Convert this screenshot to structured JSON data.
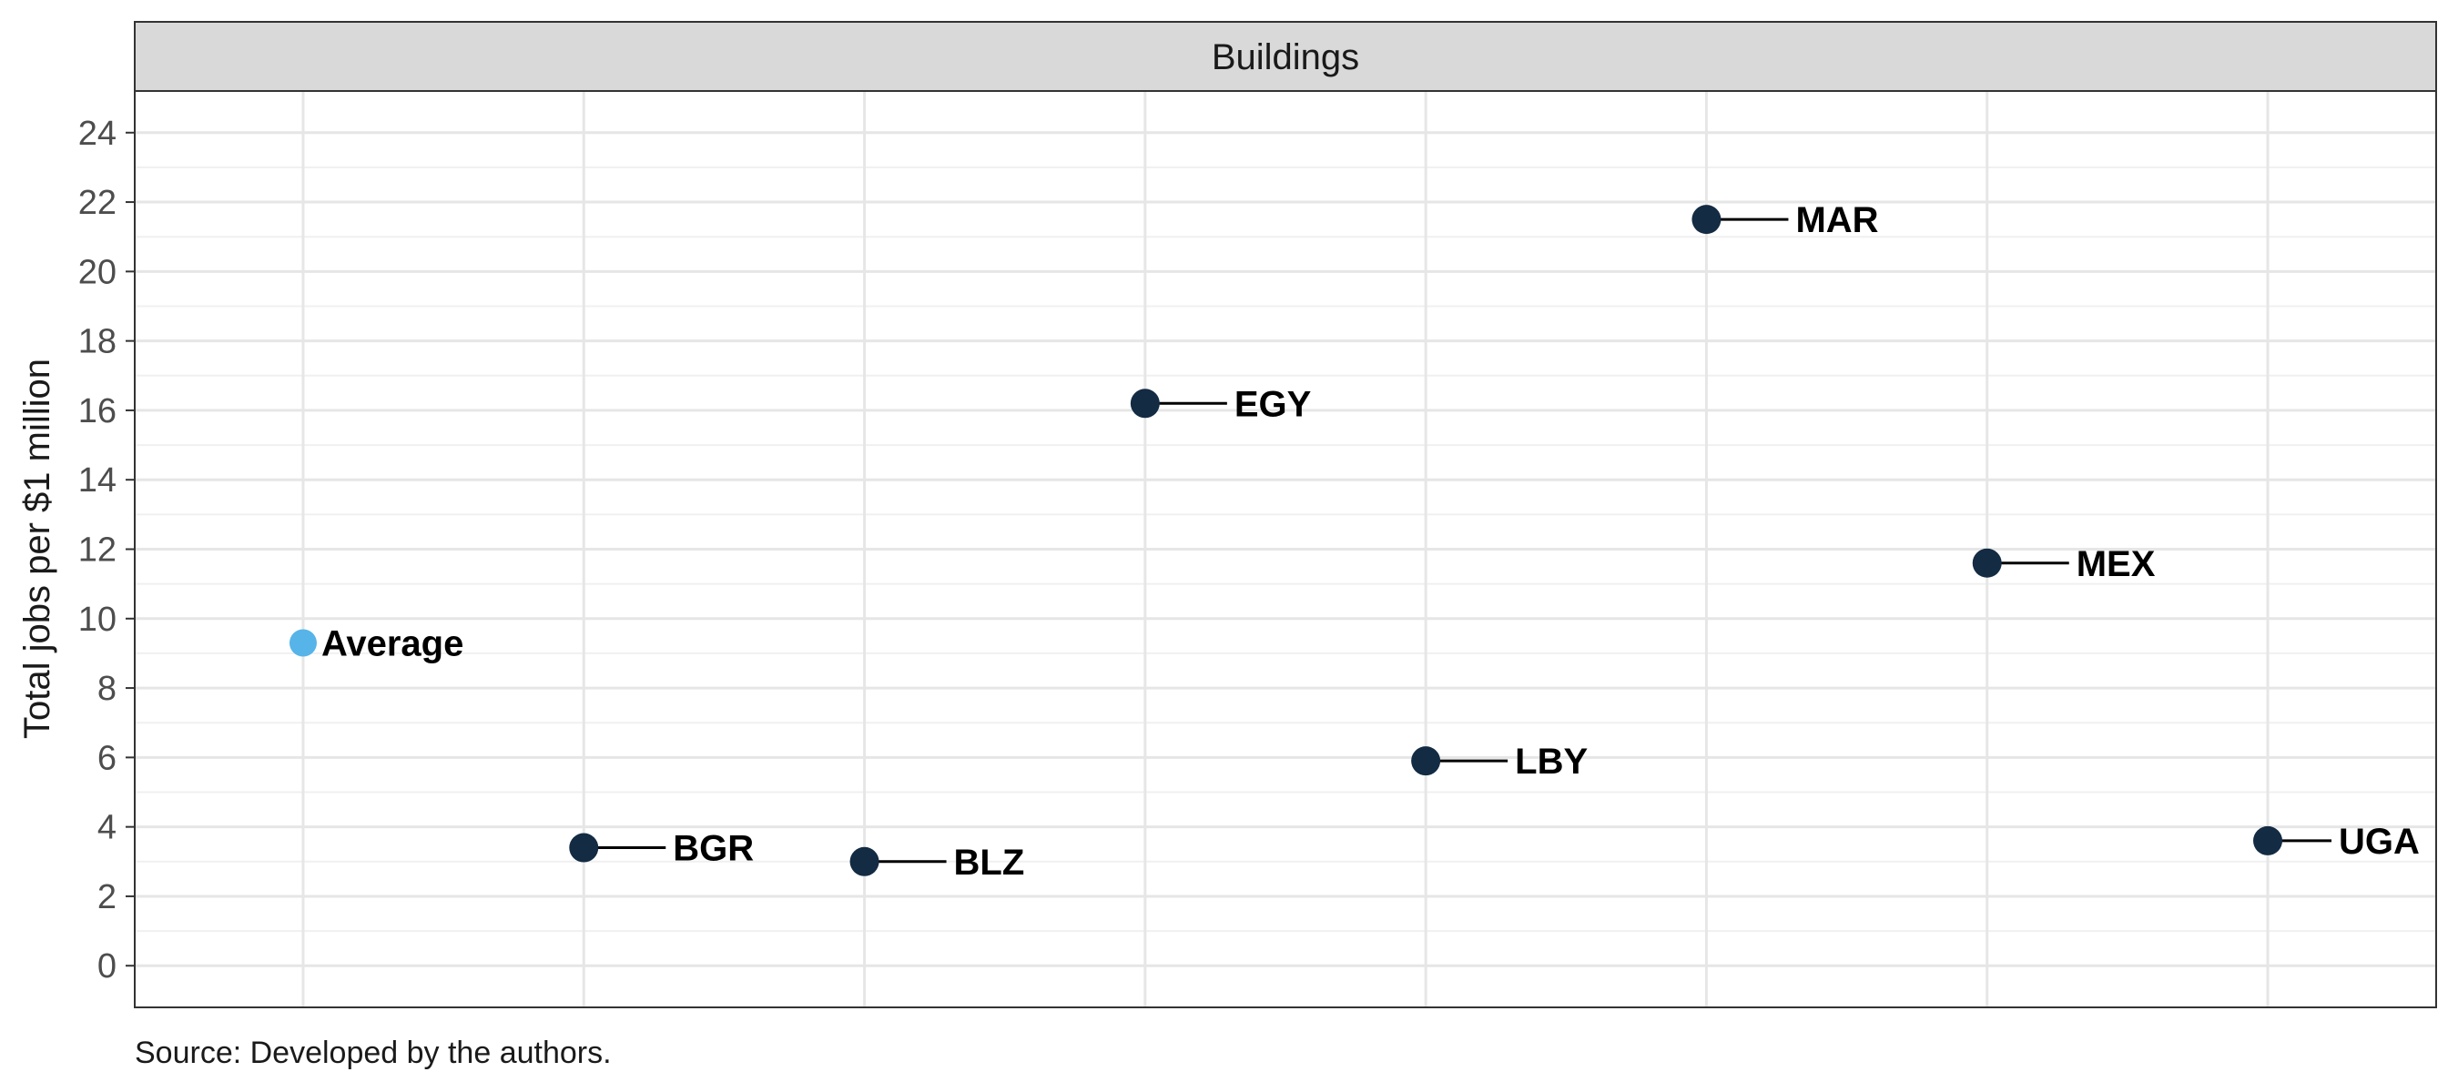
{
  "chart_data": {
    "type": "scatter",
    "facet_title": "Buildings",
    "ylabel": "Total jobs per $1 million",
    "xlabel": "",
    "ylim": [
      -1.2,
      25.2
    ],
    "y_ticks": [
      0,
      2,
      4,
      6,
      8,
      10,
      12,
      14,
      16,
      18,
      20,
      22,
      24
    ],
    "grid": true,
    "legend": "none",
    "caption": "Source: Developed by the authors.",
    "colors": {
      "average": "#56b4e9",
      "country": "#132b43",
      "leader": "#000000"
    },
    "points": [
      {
        "label": "Average",
        "y": 9.3,
        "is_average": true
      },
      {
        "label": "BGR",
        "y": 3.4
      },
      {
        "label": "BLZ",
        "y": 3.0
      },
      {
        "label": "EGY",
        "y": 16.2
      },
      {
        "label": "LBY",
        "y": 5.9
      },
      {
        "label": "MAR",
        "y": 21.5
      },
      {
        "label": "MEX",
        "y": 11.6
      },
      {
        "label": "UGA",
        "y": 3.6
      }
    ]
  }
}
